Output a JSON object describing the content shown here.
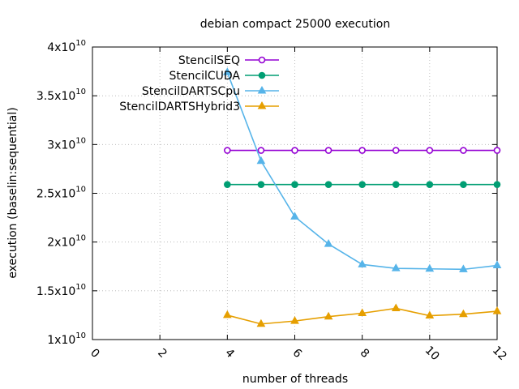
{
  "chart_data": {
    "type": "line",
    "title": "debian compact 25000 execution",
    "xlabel": "number of threads",
    "ylabel": "execution (baselin:sequential)",
    "xlim": [
      0,
      12
    ],
    "ylim": [
      10000000000.0,
      40000000000.0
    ],
    "x_ticks": [
      0,
      2,
      4,
      6,
      8,
      10,
      12
    ],
    "y_ticks": [
      {
        "value": 10000000000.0,
        "mant": "1",
        "exp": "10"
      },
      {
        "value": 15000000000.0,
        "mant": "1.5",
        "exp": "10"
      },
      {
        "value": 20000000000.0,
        "mant": "2",
        "exp": "10"
      },
      {
        "value": 25000000000.0,
        "mant": "2.5",
        "exp": "10"
      },
      {
        "value": 30000000000.0,
        "mant": "3",
        "exp": "10"
      },
      {
        "value": 35000000000.0,
        "mant": "3.5",
        "exp": "10"
      },
      {
        "value": 40000000000.0,
        "mant": "4",
        "exp": "10"
      }
    ],
    "y_tick_base": "x10",
    "grid": true,
    "legend_position": "top-right",
    "x": [
      4,
      5,
      6,
      7,
      8,
      9,
      10,
      11,
      12
    ],
    "series": [
      {
        "name": "StencilSEQ",
        "color": "#9400d3",
        "marker": "circle-open",
        "values": [
          29400000000.0,
          29400000000.0,
          29400000000.0,
          29400000000.0,
          29400000000.0,
          29400000000.0,
          29400000000.0,
          29400000000.0,
          29400000000.0
        ]
      },
      {
        "name": "StencilCUDA",
        "color": "#009e73",
        "marker": "circle-filled",
        "values": [
          25900000000.0,
          25900000000.0,
          25900000000.0,
          25900000000.0,
          25900000000.0,
          25900000000.0,
          25900000000.0,
          25900000000.0,
          25900000000.0
        ]
      },
      {
        "name": "StencilDARTSCpu",
        "color": "#56b4e9",
        "marker": "triangle",
        "values": [
          37400000000.0,
          28300000000.0,
          22600000000.0,
          19800000000.0,
          17700000000.0,
          17300000000.0,
          17250000000.0,
          17200000000.0,
          17600000000.0
        ]
      },
      {
        "name": "StencilDARTSHybrid3",
        "color": "#e69f00",
        "marker": "triangle",
        "values": [
          12500000000.0,
          11600000000.0,
          11900000000.0,
          12350000000.0,
          12700000000.0,
          13200000000.0,
          12450000000.0,
          12600000000.0,
          12900000000.0
        ]
      }
    ]
  }
}
